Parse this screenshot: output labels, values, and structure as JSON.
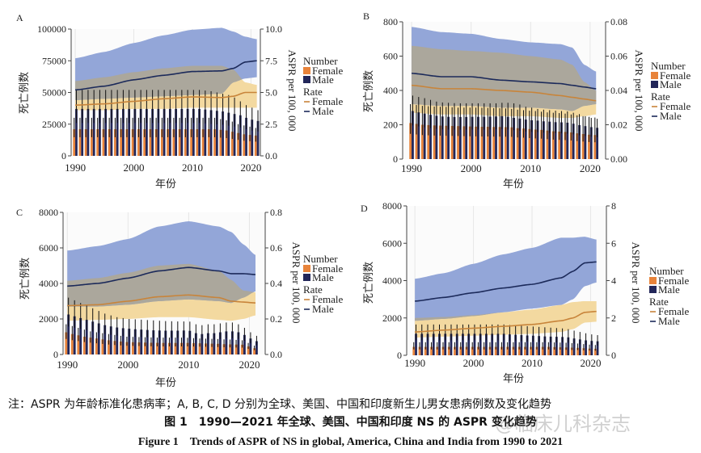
{
  "caption": {
    "note": "注：ASPR 为年龄标准化患病率；A, B, C, D 分别为全球、美国、中国和印度新生儿男女患病例数及变化趋势",
    "title_cn": "图 1　1990—2021 年全球、美国、中国和印度 NS 的 ASPR 变化趋势",
    "title_en": "Figure 1　Trends of ASPR of NS in global, America, China and India from 1990 to 2021",
    "watermark": "@临床儿科杂志"
  },
  "colors": {
    "female_bar": "#e8833a",
    "male_bar": "#222659",
    "female_line": "#c8843a",
    "male_line": "#1c2a5a",
    "male_band": "#93a6d8",
    "female_band": "#f3d9a0",
    "overlap_band": "#aba79c"
  },
  "chart_data": [
    {
      "panel": "A",
      "type": "bar+line",
      "xlabel": "年份",
      "ylabel": "死亡例数",
      "ylabel_right": "ASPR per 100, 000",
      "x_ticks": [
        "1990",
        "2000",
        "2010",
        "2020"
      ],
      "y_ticks": [
        "0",
        "25000",
        "50000",
        "75000",
        "100000"
      ],
      "ylim": [
        0,
        100000
      ],
      "y_right_ticks": [
        "0.0",
        "2.5",
        "5.0",
        "7.5",
        "10.0"
      ],
      "ylim_right": [
        0,
        10
      ],
      "legend": {
        "number_title": "Number",
        "rate_title": "Rate",
        "female": "Female",
        "male": "Male"
      },
      "years": [
        1990,
        1991,
        1992,
        1993,
        1994,
        1995,
        1996,
        1997,
        1998,
        1999,
        2000,
        2001,
        2002,
        2003,
        2004,
        2005,
        2006,
        2007,
        2008,
        2009,
        2010,
        2011,
        2012,
        2013,
        2014,
        2015,
        2016,
        2017,
        2018,
        2019,
        2020,
        2021
      ],
      "number_female": [
        21000,
        21000,
        21000,
        21000,
        21000,
        21000,
        21000,
        21000,
        21000,
        21000,
        21000,
        21000,
        21000,
        21000,
        21000,
        21000,
        21000,
        21000,
        21000,
        21000,
        21000,
        21000,
        21000,
        21000,
        21000,
        20500,
        20000,
        19000,
        18000,
        17000,
        16500,
        16000
      ],
      "number_female_upper": [
        30000,
        30000,
        30000,
        30000,
        30000,
        30000,
        30000,
        30000,
        30000,
        30000,
        30000,
        30000,
        30000,
        30000,
        30000,
        30000,
        30000,
        30000,
        30000,
        30000,
        30000,
        30000,
        30000,
        30000,
        30000,
        29000,
        28000,
        27000,
        25000,
        24000,
        23000,
        22000
      ],
      "number_male": [
        37000,
        37000,
        37000,
        37000,
        37000,
        37000,
        37000,
        37000,
        37000,
        37000,
        37000,
        37000,
        37000,
        37000,
        37000,
        37000,
        37000,
        37000,
        37000,
        37000,
        37000,
        37000,
        36500,
        36000,
        35500,
        35000,
        34000,
        33000,
        32000,
        30000,
        28500,
        27500
      ],
      "number_male_upper": [
        52000,
        52000,
        52000,
        52000,
        52000,
        52000,
        52000,
        52000,
        52000,
        52000,
        52000,
        52000,
        52000,
        52000,
        52000,
        52000,
        52000,
        52000,
        52000,
        52000,
        52000,
        52000,
        51500,
        51000,
        50000,
        49000,
        48000,
        46000,
        43000,
        40000,
        38000,
        36000
      ],
      "rate_years": [
        1990,
        1995,
        2000,
        2005,
        2010,
        2015,
        2017,
        2019,
        2021
      ],
      "rate_male": [
        5.2,
        5.5,
        6.0,
        6.35,
        6.65,
        6.7,
        6.9,
        7.4,
        7.5
      ],
      "rate_male_lower": [
        4.4,
        4.5,
        4.6,
        4.7,
        4.8,
        4.9,
        5.8,
        6.1,
        6.2
      ],
      "rate_male_upper": [
        7.7,
        8.2,
        8.9,
        9.5,
        9.95,
        10.1,
        9.8,
        9.4,
        9.2
      ],
      "rate_female": [
        4.0,
        4.1,
        4.3,
        4.5,
        4.65,
        4.6,
        4.7,
        5.0,
        5.0
      ],
      "rate_female_lower": [
        3.6,
        3.6,
        3.7,
        3.7,
        3.8,
        3.8,
        3.8,
        3.8,
        3.8
      ],
      "rate_female_upper": [
        5.9,
        6.2,
        6.6,
        6.9,
        7.1,
        7.1,
        6.8,
        5.8,
        5.6
      ]
    },
    {
      "panel": "B",
      "type": "bar+line",
      "xlabel": "年份",
      "ylabel": "死亡例数",
      "ylabel_right": "ASPR per 100, 000",
      "x_ticks": [
        "1990",
        "2000",
        "2010",
        "2020"
      ],
      "y_ticks": [
        "0",
        "200",
        "400",
        "600",
        "800"
      ],
      "ylim": [
        0,
        800
      ],
      "y_right_ticks": [
        "0.00",
        "0.02",
        "0.04",
        "0.06",
        "0.08"
      ],
      "ylim_right": [
        0,
        0.08
      ],
      "legend": {
        "number_title": "Number",
        "rate_title": "Rate",
        "female": "Female",
        "male": "Male"
      },
      "years": [
        1990,
        1991,
        1992,
        1993,
        1994,
        1995,
        1996,
        1997,
        1998,
        1999,
        2000,
        2001,
        2002,
        2003,
        2004,
        2005,
        2006,
        2007,
        2008,
        2009,
        2010,
        2011,
        2012,
        2013,
        2014,
        2015,
        2016,
        2017,
        2018,
        2019,
        2020,
        2021
      ],
      "number_female": [
        210,
        205,
        200,
        198,
        196,
        195,
        194,
        193,
        192,
        191,
        190,
        189,
        188,
        188,
        187,
        187,
        186,
        185,
        180,
        178,
        175,
        172,
        170,
        166,
        162,
        160,
        158,
        155,
        150,
        146,
        142,
        140
      ],
      "number_female_upper": [
        320,
        315,
        310,
        308,
        306,
        305,
        304,
        302,
        300,
        300,
        300,
        300,
        299,
        298,
        297,
        296,
        295,
        292,
        288,
        285,
        282,
        280,
        276,
        272,
        270,
        268,
        265,
        260,
        255,
        250,
        246,
        242
      ],
      "number_male": [
        280,
        272,
        265,
        258,
        252,
        248,
        246,
        245,
        245,
        245,
        246,
        246,
        246,
        247,
        248,
        250,
        246,
        240,
        236,
        230,
        226,
        224,
        220,
        218,
        215,
        214,
        212,
        206,
        198,
        192,
        186,
        182
      ],
      "number_male_upper": [
        370,
        362,
        355,
        345,
        335,
        330,
        328,
        326,
        325,
        325,
        325,
        325,
        325,
        325,
        325,
        328,
        328,
        325,
        318,
        305,
        300,
        292,
        288,
        285,
        282,
        280,
        278,
        270,
        262,
        250,
        240,
        235
      ],
      "rate_years": [
        1990,
        1995,
        2000,
        2005,
        2010,
        2015,
        2017,
        2019,
        2021
      ],
      "rate_male": [
        0.05,
        0.048,
        0.048,
        0.046,
        0.045,
        0.044,
        0.043,
        0.042,
        0.041
      ],
      "rate_male_lower": [
        0.032,
        0.031,
        0.031,
        0.03,
        0.03,
        0.029,
        0.028,
        0.031,
        0.032
      ],
      "rate_male_upper": [
        0.077,
        0.074,
        0.073,
        0.07,
        0.068,
        0.067,
        0.065,
        0.055,
        0.051
      ],
      "rate_female": [
        0.043,
        0.041,
        0.041,
        0.04,
        0.039,
        0.037,
        0.036,
        0.035,
        0.034
      ],
      "rate_female_lower": [
        0.027,
        0.026,
        0.026,
        0.025,
        0.025,
        0.024,
        0.024,
        0.025,
        0.026
      ],
      "rate_female_upper": [
        0.066,
        0.064,
        0.063,
        0.062,
        0.06,
        0.058,
        0.055,
        0.045,
        0.04
      ]
    },
    {
      "panel": "C",
      "type": "bar+line",
      "xlabel": "年份",
      "ylabel": "死亡例数",
      "ylabel_right": "ASPR per 100, 000",
      "x_ticks": [
        "1990",
        "2000",
        "2010",
        "2020"
      ],
      "y_ticks": [
        "0",
        "2000",
        "4000",
        "6000",
        "8000"
      ],
      "ylim": [
        0,
        8000
      ],
      "y_right_ticks": [
        "0.0",
        "0.2",
        "0.4",
        "0.6",
        "0.8"
      ],
      "ylim_right": [
        0,
        0.8
      ],
      "legend": {
        "number_title": "Number",
        "rate_title": "Rate",
        "female": "Female",
        "male": "Male"
      },
      "years": [
        1990,
        1991,
        1992,
        1993,
        1994,
        1995,
        1996,
        1997,
        1998,
        1999,
        2000,
        2001,
        2002,
        2003,
        2004,
        2005,
        2006,
        2007,
        2008,
        2009,
        2010,
        2011,
        2012,
        2013,
        2014,
        2015,
        2016,
        2017,
        2018,
        2019,
        2020,
        2021
      ],
      "number_female": [
        1250,
        1150,
        1080,
        1000,
        950,
        900,
        850,
        800,
        760,
        730,
        700,
        690,
        680,
        670,
        660,
        655,
        650,
        650,
        650,
        650,
        650,
        640,
        630,
        620,
        610,
        600,
        580,
        570,
        560,
        550,
        450,
        350
      ],
      "number_female_upper": [
        1700,
        1600,
        1500,
        1400,
        1300,
        1250,
        1200,
        1150,
        1100,
        1050,
        1000,
        990,
        980,
        970,
        960,
        950,
        950,
        950,
        950,
        950,
        940,
        920,
        900,
        890,
        880,
        870,
        850,
        840,
        820,
        800,
        650,
        500
      ],
      "number_male": [
        2250,
        2150,
        2050,
        1950,
        1850,
        1750,
        1650,
        1580,
        1520,
        1480,
        1450,
        1420,
        1400,
        1380,
        1360,
        1350,
        1340,
        1340,
        1340,
        1350,
        1330,
        1200,
        1150,
        1200,
        1200,
        1250,
        1300,
        1300,
        1250,
        1100,
        900,
        750
      ],
      "number_male_upper": [
        3200,
        3050,
        2900,
        2750,
        2600,
        2450,
        2300,
        2200,
        2100,
        2050,
        2000,
        1980,
        1960,
        1940,
        1920,
        1900,
        1880,
        1870,
        1860,
        1860,
        1850,
        1700,
        1650,
        1700,
        1700,
        1750,
        1800,
        1800,
        1700,
        1500,
        1250,
        1050
      ],
      "rate_years": [
        1990,
        1995,
        2000,
        2005,
        2010,
        2015,
        2017,
        2019,
        2021
      ],
      "rate_male": [
        0.385,
        0.4,
        0.43,
        0.47,
        0.49,
        0.47,
        0.455,
        0.455,
        0.45
      ],
      "rate_male_lower": [
        0.27,
        0.27,
        0.28,
        0.3,
        0.31,
        0.3,
        0.29,
        0.32,
        0.355
      ],
      "rate_male_upper": [
        0.585,
        0.61,
        0.65,
        0.72,
        0.75,
        0.72,
        0.69,
        0.62,
        0.56
      ],
      "rate_female": [
        0.275,
        0.28,
        0.3,
        0.325,
        0.335,
        0.32,
        0.3,
        0.295,
        0.29
      ],
      "rate_female_lower": [
        0.19,
        0.195,
        0.2,
        0.21,
        0.21,
        0.195,
        0.19,
        0.2,
        0.22
      ],
      "rate_female_upper": [
        0.415,
        0.43,
        0.46,
        0.5,
        0.51,
        0.47,
        0.42,
        0.36,
        0.35
      ]
    },
    {
      "panel": "D",
      "type": "bar+line",
      "xlabel": "年份",
      "ylabel": "死亡例数",
      "ylabel_right": "ASPR per 100, 000",
      "x_ticks": [
        "1990",
        "2000",
        "2010",
        "2020"
      ],
      "y_ticks": [
        "0",
        "2000",
        "4000",
        "6000",
        "8000"
      ],
      "ylim": [
        0,
        8000
      ],
      "y_right_ticks": [
        "0",
        "2",
        "4",
        "6",
        "8"
      ],
      "ylim_right": [
        0,
        8
      ],
      "legend": {
        "number_title": "Number",
        "rate_title": "Rate",
        "female": "Female",
        "male": "Male"
      },
      "years": [
        1990,
        1991,
        1992,
        1993,
        1994,
        1995,
        1996,
        1997,
        1998,
        1999,
        2000,
        2001,
        2002,
        2003,
        2004,
        2005,
        2006,
        2007,
        2008,
        2009,
        2010,
        2011,
        2012,
        2013,
        2014,
        2015,
        2016,
        2017,
        2018,
        2019,
        2020,
        2021
      ],
      "number_female": [
        450,
        450,
        450,
        450,
        450,
        450,
        450,
        450,
        450,
        450,
        450,
        450,
        450,
        450,
        450,
        450,
        450,
        450,
        450,
        450,
        450,
        450,
        450,
        450,
        440,
        430,
        420,
        410,
        400,
        380,
        360,
        350
      ],
      "number_female_upper": [
        700,
        700,
        700,
        700,
        700,
        700,
        700,
        700,
        700,
        700,
        700,
        700,
        700,
        700,
        700,
        700,
        700,
        700,
        700,
        700,
        700,
        700,
        700,
        700,
        690,
        680,
        670,
        650,
        630,
        600,
        570,
        550
      ],
      "number_male": [
        1150,
        1150,
        1150,
        1150,
        1150,
        1150,
        1150,
        1150,
        1150,
        1150,
        1150,
        1150,
        1150,
        1150,
        1150,
        1150,
        1120,
        1100,
        1080,
        1060,
        1050,
        1030,
        1010,
        1000,
        990,
        980,
        960,
        900,
        850,
        800,
        770,
        750
      ],
      "number_male_upper": [
        1650,
        1650,
        1650,
        1650,
        1650,
        1650,
        1650,
        1650,
        1650,
        1650,
        1650,
        1650,
        1650,
        1650,
        1650,
        1650,
        1620,
        1600,
        1580,
        1560,
        1540,
        1520,
        1500,
        1480,
        1460,
        1440,
        1400,
        1320,
        1250,
        1180,
        1120,
        1080
      ],
      "rate_years": [
        1990,
        1995,
        2000,
        2005,
        2010,
        2015,
        2017,
        2019,
        2021
      ],
      "rate_male": [
        2.9,
        3.1,
        3.35,
        3.6,
        3.8,
        4.15,
        4.5,
        4.95,
        5.0
      ],
      "rate_male_lower": [
        1.85,
        1.95,
        2.1,
        2.3,
        2.5,
        2.7,
        3.0,
        3.7,
        3.9
      ],
      "rate_male_upper": [
        4.1,
        4.4,
        4.9,
        5.4,
        5.75,
        6.3,
        6.3,
        6.35,
        6.2
      ],
      "rate_female": [
        1.25,
        1.35,
        1.45,
        1.55,
        1.65,
        1.85,
        2.0,
        2.3,
        2.35
      ],
      "rate_female_lower": [
        0.95,
        1.0,
        1.05,
        1.1,
        1.15,
        1.25,
        1.4,
        1.75,
        1.8
      ],
      "rate_female_upper": [
        2.0,
        2.05,
        2.15,
        2.3,
        2.45,
        2.7,
        2.85,
        2.9,
        2.9
      ]
    }
  ]
}
